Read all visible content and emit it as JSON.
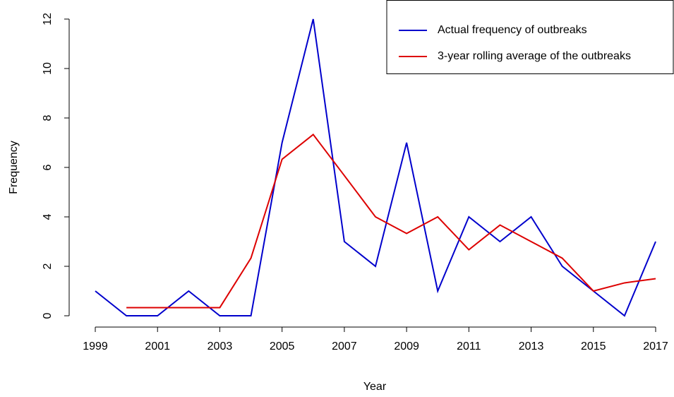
{
  "chart_data": {
    "type": "line",
    "x_label": "Year",
    "y_label": "Frequency",
    "x": [
      1999,
      2000,
      2001,
      2002,
      2003,
      2004,
      2005,
      2006,
      2007,
      2008,
      2009,
      2010,
      2011,
      2012,
      2013,
      2014,
      2015,
      2016,
      2017
    ],
    "series": [
      {
        "name": "Actual frequency of outbreaks",
        "color": "#0000cc",
        "values": [
          1,
          0,
          0,
          1,
          0,
          0,
          7,
          12,
          3,
          2,
          7,
          1,
          4,
          3,
          4,
          2,
          1,
          0,
          3
        ]
      },
      {
        "name": "3-year rolling average of the outbreaks",
        "color": "#dd0000",
        "values": [
          null,
          0.33,
          0.33,
          0.33,
          0.33,
          2.33,
          6.33,
          7.33,
          5.67,
          4,
          3.33,
          4,
          2.67,
          3.67,
          3,
          2.33,
          1,
          1.33,
          1.5
        ]
      }
    ],
    "xlim": [
      1999,
      2017
    ],
    "xticks": [
      1999,
      2001,
      2003,
      2005,
      2007,
      2009,
      2011,
      2013,
      2015,
      2017
    ],
    "ylim": [
      0,
      12
    ],
    "yticks": [
      0,
      2,
      4,
      6,
      8,
      10,
      12
    ],
    "legend": "top-right",
    "grid": false
  }
}
